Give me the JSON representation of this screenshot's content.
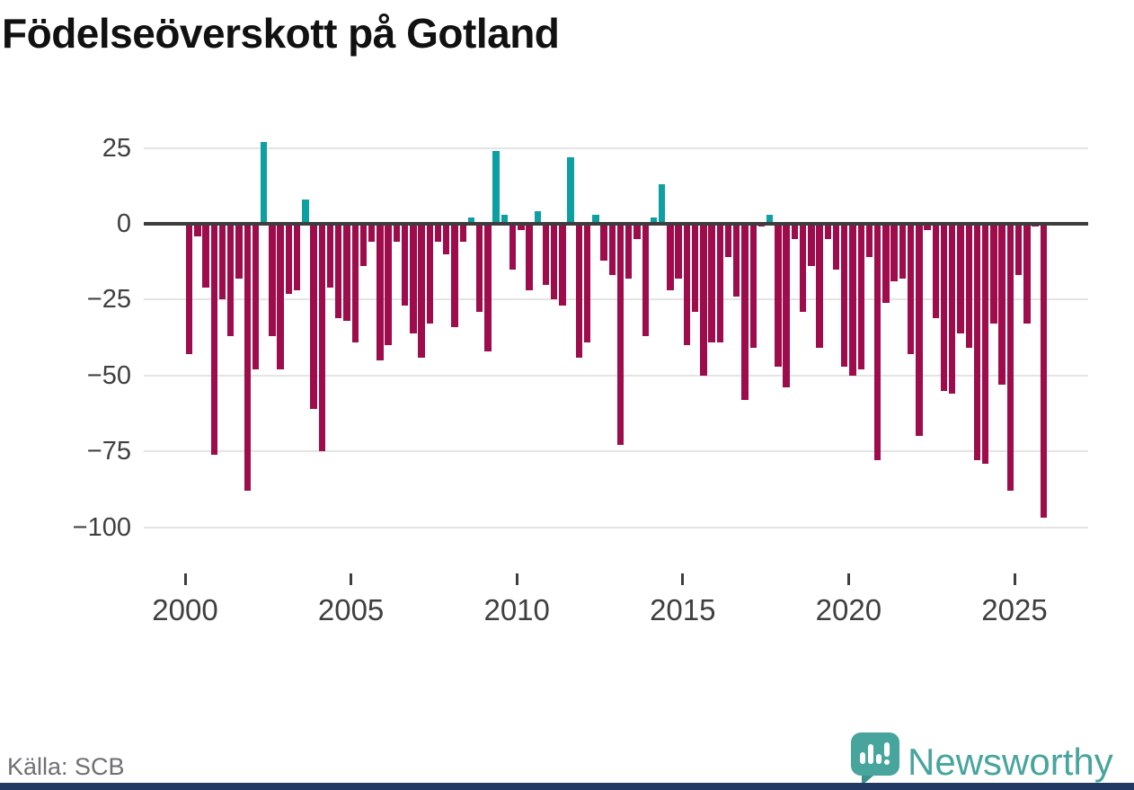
{
  "title": "Födelseöverskott på Gotland",
  "source": "Källa: SCB",
  "logo": {
    "text": "Newsworthy",
    "icon": "newsworthy-speech-bubble-chart-icon"
  },
  "colors": {
    "negative_bar": "#9e0c4c",
    "positive_bar": "#0da0a2",
    "zero_line": "#3d3d3d",
    "grid": "#e4e4e4",
    "axis_text": "#3f3f3f",
    "title_text": "#111111",
    "source_text": "#6f6f74",
    "brand_teal": "#47a59d",
    "footer_strip": "#223a63"
  },
  "chart_data": {
    "type": "bar",
    "title": "Födelseöverskott på Gotland",
    "period": "quarterly",
    "start": "2000-Q1",
    "end": "2025-Q4",
    "ylim": [
      -105,
      30
    ],
    "grid": "horizontal",
    "yticks": [
      {
        "value": 25,
        "label": "25"
      },
      {
        "value": 0,
        "label": "0"
      },
      {
        "value": -25,
        "label": "−25"
      },
      {
        "value": -50,
        "label": "−50"
      },
      {
        "value": -75,
        "label": "−75"
      },
      {
        "value": -100,
        "label": "−100"
      }
    ],
    "xticks": [
      2000,
      2005,
      2010,
      2015,
      2020,
      2025
    ],
    "years": [
      {
        "year": 2000,
        "q": [
          -43,
          -4,
          -21,
          -76
        ]
      },
      {
        "year": 2001,
        "q": [
          -25,
          -37,
          -18,
          -88
        ]
      },
      {
        "year": 2002,
        "q": [
          -48,
          27,
          -37,
          -48
        ]
      },
      {
        "year": 2003,
        "q": [
          -23,
          -22,
          8,
          -61
        ]
      },
      {
        "year": 2004,
        "q": [
          -75,
          -21,
          -31,
          -32
        ]
      },
      {
        "year": 2005,
        "q": [
          -39,
          -14,
          -6,
          -45
        ]
      },
      {
        "year": 2006,
        "q": [
          -40,
          -6,
          -27,
          -36
        ]
      },
      {
        "year": 2007,
        "q": [
          -44,
          -33,
          -6,
          -10
        ]
      },
      {
        "year": 2008,
        "q": [
          -34,
          -6,
          2,
          -29
        ]
      },
      {
        "year": 2009,
        "q": [
          -42,
          24,
          3,
          -15
        ]
      },
      {
        "year": 2010,
        "q": [
          -2,
          -22,
          4,
          -20
        ]
      },
      {
        "year": 2011,
        "q": [
          -25,
          -27,
          22,
          -44
        ]
      },
      {
        "year": 2012,
        "q": [
          -39,
          3,
          -12,
          -17
        ]
      },
      {
        "year": 2013,
        "q": [
          -73,
          -18,
          -5,
          -37
        ]
      },
      {
        "year": 2014,
        "q": [
          2,
          13,
          -22,
          -18
        ]
      },
      {
        "year": 2015,
        "q": [
          -40,
          -29,
          -50,
          -39
        ]
      },
      {
        "year": 2016,
        "q": [
          -39,
          -11,
          -24,
          -58
        ]
      },
      {
        "year": 2017,
        "q": [
          -41,
          -1,
          3,
          -47
        ]
      },
      {
        "year": 2018,
        "q": [
          -54,
          -5,
          -29,
          -14
        ]
      },
      {
        "year": 2019,
        "q": [
          -41,
          -5,
          -15,
          -47
        ]
      },
      {
        "year": 2020,
        "q": [
          -50,
          -48,
          -11,
          -78
        ]
      },
      {
        "year": 2021,
        "q": [
          -26,
          -19,
          -18,
          -43
        ]
      },
      {
        "year": 2022,
        "q": [
          -70,
          -2,
          -31,
          -55
        ]
      },
      {
        "year": 2023,
        "q": [
          -56,
          -36,
          -41,
          -78
        ]
      },
      {
        "year": 2024,
        "q": [
          -79,
          -33,
          -53,
          -88
        ]
      },
      {
        "year": 2025,
        "q": [
          -17,
          -33,
          -1,
          -97
        ]
      }
    ]
  }
}
